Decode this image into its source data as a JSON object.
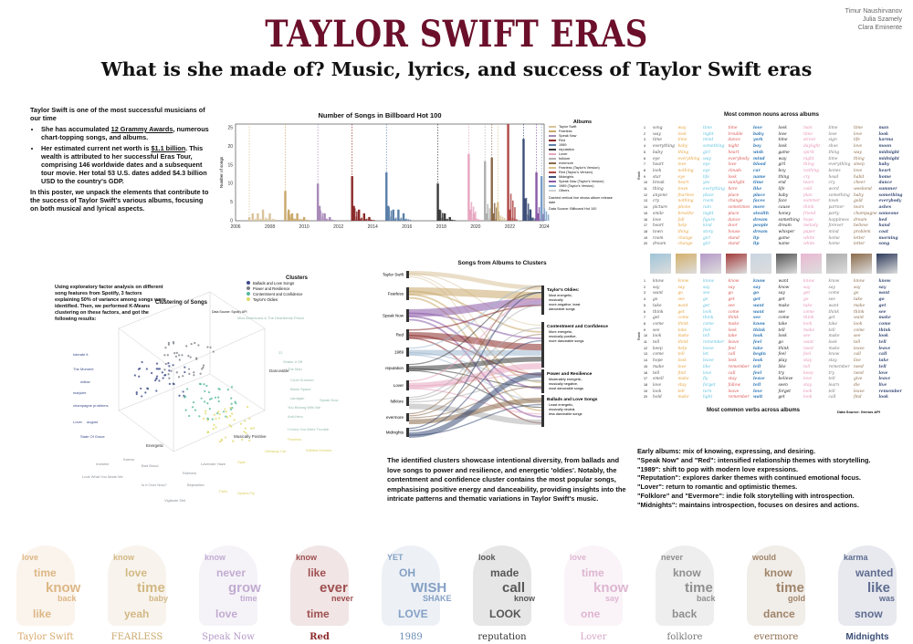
{
  "authors": [
    "Timur Naushirvanov",
    "Julia Szamely",
    "Clara Eminente"
  ],
  "title": "TAYLOR SWIFT ERAS",
  "subtitle": "What is she made of? Music, lyrics, and success of Taylor Swift eras",
  "intro": {
    "lead": "Taylor Swift is one of the most successful musicians of our time",
    "b1_pre": "She has accumulated ",
    "b1_link": "12 Grammy Awards",
    "b1_post": ", numerous chart-topping songs, and albums.",
    "b2_pre": "Her estimated  current net worth is ",
    "b2_link": "$1.1 billion",
    "b2_post": ". This wealth is attributed to her successful Eras Tour, comprising 146 worldwide dates and a subsequent tour movie. Her total 53 U.S. dates added $4.3 billion USD to the country's GDP.",
    "closing": "In this poster, we unpack the elements that contribute to the success of Taylor Swift's various albums, focusing on both musical and lyrical aspects."
  },
  "hot100": {
    "title": "Number of Songs in Billboard Hot 100",
    "ylabel": "Number of songs",
    "note1": "Dashed vertical line shows album release date",
    "note2": "Data Source: Billboard Hot 100",
    "legend_title": "Albums",
    "legend": [
      "Taylor Swift",
      "Fearless",
      "Speak Now",
      "Red",
      "1989",
      "reputation",
      "Lover",
      "folklore",
      "evermore",
      "Fearless (Taylor's Version)",
      "Red (Taylor's Version)",
      "Midnights",
      "Speak Now (Taylor's Version)",
      "1989 (Taylor's Version)",
      "Others"
    ]
  },
  "chart_data": {
    "type": "bar",
    "title": "Number of Songs in Billboard Hot 100",
    "xlabel": "",
    "ylabel": "Number of songs",
    "xlim": [
      2006,
      2024
    ],
    "ylim": [
      0,
      26
    ],
    "x_ticks": [
      2006,
      2008,
      2010,
      2012,
      2014,
      2016,
      2018,
      2020,
      2022,
      2024
    ],
    "y_ticks": [
      0,
      5,
      10,
      15,
      20,
      25
    ],
    "series": [
      {
        "name": "Taylor Swift",
        "color": "#d9c39a",
        "x": [
          2006.8,
          2007.0,
          2007.3,
          2007.6,
          2008.0
        ],
        "values": [
          1,
          2,
          2,
          3,
          2
        ]
      },
      {
        "name": "Fearless",
        "color": "#c9a86a",
        "x": [
          2008.9,
          2009.1,
          2009.3,
          2009.6,
          2010.0
        ],
        "values": [
          8,
          3,
          2,
          2,
          1
        ]
      },
      {
        "name": "Speak Now",
        "color": "#a88ab8",
        "x": [
          2010.8,
          2010.9,
          2011.2,
          2011.5
        ],
        "values": [
          10,
          4,
          2,
          1
        ]
      },
      {
        "name": "Red",
        "color": "#8b2a2a",
        "x": [
          2012.8,
          2012.9,
          2013.2,
          2013.5,
          2013.8
        ],
        "values": [
          12,
          4,
          3,
          2,
          1
        ]
      },
      {
        "name": "1989",
        "color": "#5a7fa8",
        "x": [
          2014.8,
          2014.9,
          2015.2,
          2015.5,
          2015.8
        ],
        "values": [
          13,
          4,
          3,
          3,
          2
        ]
      },
      {
        "name": "reputation",
        "color": "#3b3b3b",
        "x": [
          2017.8,
          2017.9,
          2018.2,
          2018.5
        ],
        "values": [
          10,
          3,
          2,
          1
        ]
      },
      {
        "name": "Lover",
        "color": "#e7a6c0",
        "x": [
          2019.6,
          2019.7,
          2019.9
        ],
        "values": [
          18,
          3,
          2
        ]
      },
      {
        "name": "folklore",
        "color": "#b0b0b0",
        "x": [
          2020.55,
          2020.65
        ],
        "values": [
          16,
          2
        ]
      },
      {
        "name": "evermore",
        "color": "#8b6a4a",
        "x": [
          2020.95,
          2021.05
        ],
        "values": [
          17,
          2
        ]
      },
      {
        "name": "Fearless (Taylor's Version)",
        "color": "#d8c28c",
        "x": [
          2021.3
        ],
        "values": [
          5
        ]
      },
      {
        "name": "Red (Taylor's Version)",
        "color": "#b04848",
        "x": [
          2021.9,
          2022.0
        ],
        "values": [
          26,
          3
        ]
      },
      {
        "name": "Midnights",
        "color": "#3c4e78",
        "x": [
          2022.8,
          2022.9,
          2023.2
        ],
        "values": [
          22,
          6,
          3
        ]
      },
      {
        "name": "Speak Now (Taylor's Version)",
        "color": "#8a5aa8",
        "x": [
          2023.55,
          2023.65
        ],
        "values": [
          13,
          2
        ]
      },
      {
        "name": "1989 (Taylor's Version)",
        "color": "#7aa0c8",
        "x": [
          2023.85
        ],
        "values": [
          12
        ]
      },
      {
        "name": "Others",
        "color": "#cfcfcf",
        "x": [],
        "values": []
      }
    ]
  },
  "nouns": {
    "title": "Most common nouns across albums",
    "ylabel": "Rank",
    "rows": [
      [
        "song",
        "way",
        "time",
        "time",
        "love",
        "look",
        "man",
        "time",
        "time",
        "man"
      ],
      [
        "way",
        "look",
        "night",
        "trouble",
        "baby",
        "love",
        "time",
        "love",
        "love",
        "look"
      ],
      [
        "time",
        "time",
        "mind",
        "dance",
        "york",
        "time",
        "street",
        "sign",
        "life",
        "karma"
      ],
      [
        "everything",
        "baby",
        "something",
        "night",
        "boy",
        "look",
        "daylight",
        "shoe",
        "love",
        "moon"
      ],
      [
        "baby",
        "thing",
        "girl",
        "heart",
        "wish",
        "game",
        "spirit",
        "thing",
        "way",
        "midnight"
      ],
      [
        "eye",
        "everything",
        "way",
        "everybody",
        "mind",
        "way",
        "night",
        "time",
        "thing",
        "midnight"
      ],
      [
        "heart",
        "love",
        "eye",
        "love",
        "blood",
        "girl",
        "thing",
        "everything",
        "sleep",
        "baby"
      ],
      [
        "look",
        "nothing",
        "eye",
        "clouds",
        "car",
        "boy",
        "nothing",
        "bones",
        "love",
        "heart"
      ],
      [
        "star",
        "eye",
        "life",
        "look",
        "name",
        "thing",
        "cry",
        "head",
        "habit",
        "home"
      ],
      [
        "break",
        "heart",
        "yes",
        "sunlight",
        "time",
        "end",
        "tears",
        "cry",
        "cheer",
        "dance"
      ],
      [
        "thing",
        "town",
        "everything",
        "here",
        "like",
        "life",
        "cold",
        "word",
        "weekend",
        "summer"
      ],
      [
        "anyone",
        "fearless",
        "place",
        "place",
        "place",
        "baby",
        "plan",
        "something",
        "baby",
        "something"
      ],
      [
        "cry",
        "nothing",
        "room",
        "change",
        "faces",
        "face",
        "summer",
        "town",
        "gold",
        "everybody"
      ],
      [
        "picture",
        "phone",
        "rain",
        "sometimes",
        "more",
        "cause",
        "think",
        "partner",
        "tears",
        "ashes"
      ],
      [
        "smile",
        "breathe",
        "night",
        "place",
        "stealth",
        "honey",
        "friend",
        "party",
        "champagne",
        "someone"
      ],
      [
        "love",
        "fall",
        "figure",
        "dance",
        "dream",
        "something",
        "hope",
        "happiness",
        "dream",
        "bed"
      ],
      [
        "heart",
        "help",
        "kind",
        "door",
        "people",
        "dream",
        "melody",
        "forever",
        "believe",
        "hand"
      ],
      [
        "town",
        "thing",
        "story",
        "house",
        "dream",
        "whisper",
        "paper",
        "mind",
        "problem",
        "coat"
      ],
      [
        "room",
        "change",
        "girl",
        "stand",
        "lip",
        "game",
        "white",
        "home",
        "letter",
        "morning"
      ],
      [
        "dream",
        "change",
        "girl",
        "stand",
        "lip",
        "name",
        "white",
        "home",
        "letter",
        "song"
      ]
    ]
  },
  "verbs": {
    "title": "Most common verbs across albums",
    "source": "Data Source: Genius API",
    "ylabel": "Rank",
    "rows": [
      [
        "know",
        "know",
        "know",
        "know",
        "know",
        "want",
        "know",
        "know",
        "know",
        "know"
      ],
      [
        "say",
        "say",
        "say",
        "say",
        "say",
        "know",
        "say",
        "say",
        "say",
        "say"
      ],
      [
        "want",
        "go",
        "see",
        "go",
        "go",
        "say",
        "get",
        "come",
        "go",
        "want"
      ],
      [
        "go",
        "see",
        "go",
        "get",
        "get",
        "get",
        "go",
        "see",
        "take",
        "go"
      ],
      [
        "take",
        "want",
        "get",
        "see",
        "want",
        "make",
        "take",
        "want",
        "make",
        "get"
      ],
      [
        "think",
        "get",
        "look",
        "come",
        "want",
        "see",
        "come",
        "think",
        "think",
        "see"
      ],
      [
        "get",
        "come",
        "think",
        "think",
        "see",
        "come",
        "think",
        "get",
        "want",
        "make"
      ],
      [
        "come",
        "think",
        "come",
        "make",
        "know",
        "take",
        "look",
        "take",
        "look",
        "come"
      ],
      [
        "see",
        "take",
        "feel",
        "look",
        "think",
        "tell",
        "make",
        "tell",
        "come",
        "think"
      ],
      [
        "look",
        "make",
        "tell",
        "take",
        "look",
        "look",
        "see",
        "make",
        "see",
        "look"
      ],
      [
        "tell",
        "think",
        "remember",
        "leave",
        "feel",
        "go",
        "want",
        "look",
        "tell",
        "tell"
      ],
      [
        "keep",
        "help",
        "leave",
        "feel",
        "take",
        "think",
        "need",
        "make",
        "leave",
        "leave"
      ],
      [
        "come",
        "tell",
        "let",
        "call",
        "begin",
        "feel",
        "feel",
        "know",
        "call",
        "call"
      ],
      [
        "hope",
        "look",
        "leave",
        "look",
        "look",
        "play",
        "stay",
        "stay",
        "live",
        "take"
      ],
      [
        "make",
        "love",
        "like",
        "remember",
        "tell",
        "like",
        "tell",
        "remember",
        "need",
        "tell"
      ],
      [
        "tell",
        "find",
        "love",
        "call",
        "feel",
        "try",
        "keep",
        "try",
        "need",
        "love"
      ],
      [
        "smell",
        "make",
        "fly",
        "stay",
        "leave",
        "believe",
        "love",
        "tell",
        "give",
        "leave"
      ],
      [
        "love",
        "stay",
        "forget",
        "follow",
        "tell",
        "seen",
        "stay",
        "learn",
        "die",
        "live"
      ],
      [
        "look",
        "tell",
        "turn",
        "leave",
        "love",
        "forget",
        "look",
        "tell",
        "leave",
        "remember"
      ],
      [
        "hold",
        "make",
        "light",
        "remember",
        "wait",
        "get",
        "look",
        "call",
        "find",
        "look"
      ]
    ]
  },
  "clusters3d": {
    "intro": "Using exploratory factor analysis on different song features from Spotify, 3 factors explaining 50% of variance among songs were identified. Then, we performed K-Means clustering  on these factors, and got the following results:",
    "title": "Clustering of Songs",
    "source": "Data Source: Spotify API",
    "legend_title": "Clusters",
    "legend": [
      "Ballads and Love Songs",
      "Power and Resilience",
      "Contentment and Confidence",
      "Taylor's Oldies"
    ],
    "axis_x": "Energetic",
    "axis_y": "Musically Positive",
    "axis_z": "Danceable",
    "songs": [
      "Miss Americana & The Heartbreak Prince",
      "22",
      "Shake It Off",
      "The Man",
      "Cruel Summer",
      "Blank Space",
      "cardigan",
      "You Belong With Me",
      "Anti-Hero",
      "Speak Now",
      "I Knew You Were Trouble",
      "tolerate it",
      "The Moment",
      "willow",
      "marjorie",
      "champagne problems",
      "Lover",
      "august",
      "State Of Grace",
      "Karma",
      "Invisible",
      "Bad Blood",
      "Lavender Haze",
      "Look What You Made Me",
      "Robbers",
      "Is It Over Now?",
      "Bejeweled",
      "Vigilante Shit",
      "Getaway Car",
      "Wildest Dreams",
      "Fearless",
      "Style",
      "Paris",
      "Sparks Fly"
    ]
  },
  "sankey": {
    "title": "Songs from Albums to Clusters",
    "albums": [
      "Taylor Swift",
      "Fearless",
      "Speak Now",
      "Red",
      "1989",
      "reputation",
      "Lover",
      "folklore",
      "evermore",
      "Midnights"
    ],
    "clusters": [
      {
        "name": "Taylor's Oldies:",
        "desc": "Most energetic, musically more-negative, least danceable songs"
      },
      {
        "name": "Contentment and Confidence",
        "desc": "More energetic, musically positive, more danceable songs"
      },
      {
        "name": "Power and Resilience",
        "desc": "Moderately energetic, musically negative, most danceable songs"
      },
      {
        "name": "Ballads and Love Songs",
        "desc": "Least energetic, musically neutral, less danceable songs"
      }
    ]
  },
  "cluster_text": "The identified clusters showcase intentional diversity, from ballads and love songs to power and resilience, and energetic 'oldies'. Notably, the contentment and confidence cluster contains the most popular songs, emphasising positive energy and danceability, providing insights into the intricate patterns and thematic variations in Taylor Swift's music.",
  "eras_text": [
    "Early albums: mix of knowing, expressing, and desiring.",
    "\"Speak Now\" and \"Red\": intensified relationship themes with storytelling.",
    "\"1989\": shift to pop with modern love expressions.",
    "\"Reputation\": explores darker themes with continued emotional focus.",
    "\"Lover\": return to romantic and optimistic themes.",
    "\"Folklore\" and \"Evermore\": indie folk storytelling with introspection.",
    "\"Midnights\": maintains introspection, focuses on desires and actions."
  ],
  "albums_strip": [
    {
      "label": "Taylor Swift",
      "color": "#d7a76a",
      "words": [
        "love",
        "time",
        "know",
        "back",
        "like"
      ]
    },
    {
      "label": "FEARLESS",
      "color": "#c9a86a",
      "words": [
        "know",
        "love",
        "time",
        "baby",
        "yeah"
      ]
    },
    {
      "label": "Speak Now",
      "color": "#b59ac8",
      "words": [
        "know",
        "never",
        "grow",
        "time",
        "love"
      ]
    },
    {
      "label": "Red",
      "color": "#8b2a2a",
      "words": [
        "know",
        "like",
        "ever",
        "never",
        "time"
      ]
    },
    {
      "label": "1989",
      "color": "#6a8cb8",
      "words": [
        "YET",
        "OH",
        "WISH",
        "SHAKE",
        "LOVE"
      ]
    },
    {
      "label": "reputation",
      "color": "#333333",
      "words": [
        "look",
        "made",
        "call",
        "know",
        "LOOK"
      ]
    },
    {
      "label": "Lover",
      "color": "#d7a6c8",
      "words": [
        "love",
        "time",
        "know",
        "say",
        "one"
      ]
    },
    {
      "label": "folklore",
      "color": "#777777",
      "words": [
        "never",
        "know",
        "time",
        "back",
        "back"
      ]
    },
    {
      "label": "evermore",
      "color": "#8b6a4a",
      "words": [
        "would",
        "know",
        "time",
        "gold",
        "dance"
      ]
    },
    {
      "label": "Midnights",
      "color": "#3c4e78",
      "words": [
        "karma",
        "wanted",
        "like",
        "was",
        "snow"
      ]
    }
  ]
}
